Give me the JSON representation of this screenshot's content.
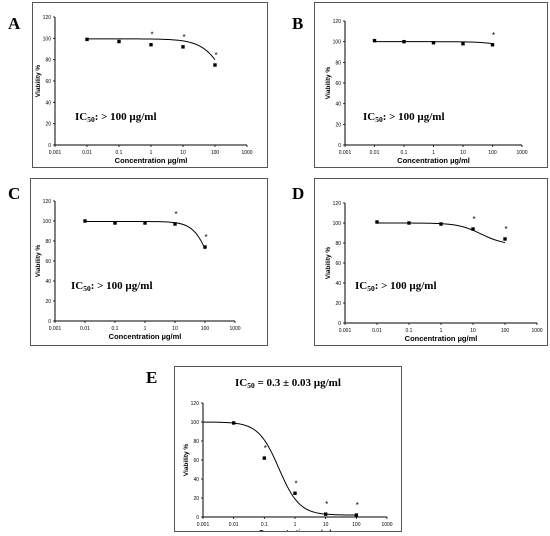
{
  "figure": {
    "panels": [
      {
        "letter": "A",
        "ic50_prefix": "IC",
        "ic50_sub": "50",
        "ic50_rest": ": > 100 µg/ml"
      },
      {
        "letter": "B",
        "ic50_prefix": "IC",
        "ic50_sub": "50",
        "ic50_rest": ": > 100 µg/ml"
      },
      {
        "letter": "C",
        "ic50_prefix": "IC",
        "ic50_sub": "50",
        "ic50_rest": ": > 100 µg/ml"
      },
      {
        "letter": "D",
        "ic50_prefix": "IC",
        "ic50_sub": "50",
        "ic50_rest": ": > 100 µg/ml"
      },
      {
        "letter": "E",
        "ic50_prefix": "IC",
        "ic50_sub": "50",
        "ic50_rest": " = 0.3 ± 0.03 µg/ml"
      }
    ]
  },
  "chart_data": [
    {
      "type": "scatter",
      "title": "",
      "xlabel": "Concentration µg/ml",
      "ylabel": "Viability %",
      "x_scale": "log",
      "xlim": [
        0.001,
        1000
      ],
      "ylim": [
        0,
        120
      ],
      "x_ticks": [
        "0.001",
        "0.01",
        "0.1",
        "1",
        "10",
        "100",
        "1000"
      ],
      "y_ticks": [
        "0",
        "20",
        "40",
        "60",
        "80",
        "100",
        "120"
      ],
      "x": [
        0.01,
        0.1,
        1,
        10,
        100
      ],
      "y": [
        99,
        97,
        94,
        92,
        75
      ],
      "significant": [
        false,
        false,
        true,
        true,
        true
      ],
      "fit_curve": {
        "top": 99.5,
        "bottom": 0,
        "ec50": 360,
        "hill": 1.1
      },
      "grid": false,
      "legend": "none",
      "marker_color": "#000000"
    },
    {
      "type": "scatter",
      "title": "",
      "xlabel": "Concentration µg/ml",
      "ylabel": "Viability %",
      "x_scale": "log",
      "xlim": [
        0.001,
        1000
      ],
      "ylim": [
        0,
        120
      ],
      "x_ticks": [
        "0.001",
        "0.01",
        "0.1",
        "1",
        "10",
        "100",
        "1000"
      ],
      "y_ticks": [
        "0",
        "20",
        "40",
        "60",
        "80",
        "100",
        "120"
      ],
      "x": [
        0.01,
        0.1,
        1,
        10,
        100
      ],
      "y": [
        101,
        100,
        99,
        98,
        97
      ],
      "significant": [
        false,
        false,
        false,
        false,
        true
      ],
      "fit_curve": {
        "top": 100,
        "bottom": 0,
        "ec50": 5000,
        "hill": 1
      },
      "grid": false,
      "legend": "none",
      "marker_color": "#000000"
    },
    {
      "type": "scatter",
      "title": "",
      "xlabel": "Concentration µg/ml",
      "ylabel": "Viability %",
      "x_scale": "log",
      "xlim": [
        0.001,
        1000
      ],
      "ylim": [
        0,
        120
      ],
      "x_ticks": [
        "0.001",
        "0.01",
        "0.1",
        "1",
        "10",
        "100",
        "1000"
      ],
      "y_ticks": [
        "0",
        "20",
        "40",
        "60",
        "80",
        "100",
        "120"
      ],
      "x": [
        0.01,
        0.1,
        1,
        10,
        100
      ],
      "y": [
        100,
        98,
        98,
        97,
        74
      ],
      "significant": [
        false,
        false,
        false,
        true,
        true
      ],
      "fit_curve": {
        "top": 99.5,
        "bottom": 0,
        "ec50": 190,
        "hill": 1.5
      },
      "grid": false,
      "legend": "none",
      "marker_color": "#000000"
    },
    {
      "type": "scatter",
      "title": "",
      "xlabel": "Concentration µg/ml",
      "ylabel": "Viability %",
      "x_scale": "log",
      "xlim": [
        0.001,
        1000
      ],
      "ylim": [
        0,
        120
      ],
      "x_ticks": [
        "0.001",
        "0.01",
        "0.1",
        "1",
        "10",
        "100",
        "1000"
      ],
      "y_ticks": [
        "0",
        "20",
        "40",
        "60",
        "80",
        "100",
        "120"
      ],
      "x": [
        0.01,
        0.1,
        1,
        10,
        100
      ],
      "y": [
        101,
        100,
        99,
        94,
        84
      ],
      "significant": [
        false,
        false,
        false,
        true,
        true
      ],
      "fit_curve": {
        "top": 100,
        "bottom": 78,
        "ec50": 18,
        "hill": 1.2
      },
      "grid": false,
      "legend": "none",
      "marker_color": "#000000"
    },
    {
      "type": "scatter",
      "title": "",
      "xlabel": "Concentration µg/ml",
      "ylabel": "Viability %",
      "x_scale": "log",
      "xlim": [
        0.001,
        1000
      ],
      "ylim": [
        0,
        120
      ],
      "x_ticks": [
        "0.001",
        "0.01",
        "0.1",
        "1",
        "10",
        "100",
        "1000"
      ],
      "y_ticks": [
        "0",
        "20",
        "40",
        "60",
        "80",
        "100",
        "120"
      ],
      "x": [
        0.01,
        0.1,
        1,
        10,
        100
      ],
      "y": [
        99,
        62,
        25,
        3,
        2
      ],
      "significant": [
        false,
        true,
        true,
        true,
        true
      ],
      "fit_curve": {
        "top": 100,
        "bottom": 2,
        "ec50": 0.3,
        "hill": 1.3
      },
      "grid": false,
      "legend": "none",
      "marker_color": "#000000"
    }
  ]
}
